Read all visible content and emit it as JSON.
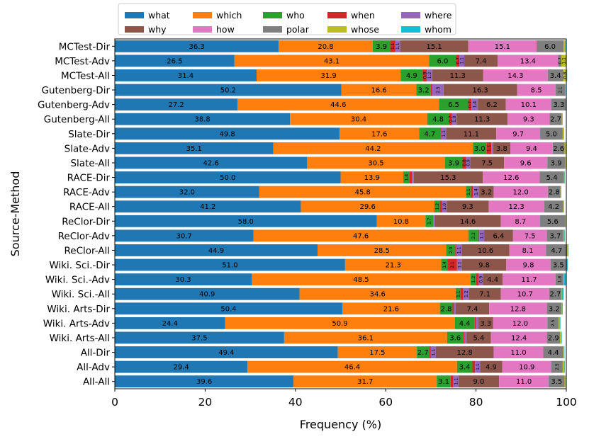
{
  "chart_data": {
    "type": "stacked-horizontal-bar",
    "xlabel": "Frequency (%)",
    "ylabel": "Source-Method",
    "xlim": [
      0,
      100
    ],
    "xticks": [
      0,
      20,
      40,
      60,
      80,
      100
    ],
    "legend_position": "top",
    "categories": [
      "MCTest-Dir",
      "MCTest-Adv",
      "MCTest-All",
      "Gutenberg-Dir",
      "Gutenberg-Adv",
      "Gutenberg-All",
      "Slate-Dir",
      "Slate-Adv",
      "Slate-All",
      "RACE-Dir",
      "RACE-Adv",
      "RACE-All",
      "ReClor-Dir",
      "ReClor-Adv",
      "ReClor-All",
      "Wiki. Sci.-Dir",
      "Wiki. Sci.-Adv",
      "Wiki. Sci.-All",
      "Wiki. Arts-Dir",
      "Wiki. Arts-Adv",
      "Wiki. Arts-All",
      "All-Dir",
      "All-Adv",
      "All-All"
    ],
    "series": [
      {
        "name": "what",
        "color": "#1f77b4",
        "values": [
          36.3,
          26.5,
          31.4,
          50.2,
          27.2,
          38.8,
          49.8,
          35.1,
          42.6,
          50.0,
          32.0,
          41.2,
          58.0,
          30.7,
          44.9,
          51.0,
          30.3,
          40.9,
          50.4,
          24.4,
          37.5,
          49.4,
          29.4,
          39.6
        ]
      },
      {
        "name": "which",
        "color": "#ff7f0e",
        "values": [
          20.8,
          43.1,
          31.9,
          16.6,
          44.6,
          30.4,
          17.6,
          44.2,
          30.5,
          13.9,
          45.8,
          29.6,
          10.8,
          47.6,
          28.5,
          21.3,
          48.5,
          34.6,
          21.6,
          50.9,
          36.1,
          17.5,
          46.4,
          31.7
        ]
      },
      {
        "name": "who",
        "color": "#2ca02c",
        "values": [
          3.9,
          6.0,
          4.9,
          3.2,
          6.5,
          4.8,
          4.7,
          3.0,
          3.9,
          1.4,
          1.1,
          1.2,
          1.7,
          2.2,
          2.0,
          1.4,
          1.2,
          1.1,
          2.8,
          4.4,
          3.6,
          2.7,
          3.4,
          3.1
        ]
      },
      {
        "name": "when",
        "color": "#d62728",
        "values": [
          1.1,
          0.7,
          0.9,
          0.3,
          0.7,
          0.7,
          0.2,
          1.1,
          0.8,
          0.5,
          0.4,
          0.5,
          0.0,
          0.2,
          0.3,
          2.1,
          0.6,
          0.6,
          0.3,
          0.3,
          0.3,
          0.4,
          0.6,
          0.6
        ]
      },
      {
        "name": "where",
        "color": "#9467bd",
        "values": [
          1.1,
          1.1,
          1.2,
          2.5,
          1.4,
          1.0,
          1.1,
          0.4,
          0.9,
          0.4,
          1.4,
          1.0,
          0.4,
          1.1,
          1.1,
          1.1,
          0.9,
          1.2,
          0.4,
          0.5,
          0.4,
          1.1,
          1.1,
          1.1
        ]
      },
      {
        "name": "why",
        "color": "#8c564b",
        "values": [
          15.1,
          7.4,
          11.3,
          16.3,
          6.2,
          11.3,
          11.1,
          3.8,
          7.5,
          15.3,
          3.2,
          9.3,
          14.6,
          6.4,
          10.6,
          9.8,
          4.4,
          7.1,
          7.4,
          3.3,
          5.4,
          12.8,
          4.9,
          9.0
        ]
      },
      {
        "name": "how",
        "color": "#e377c2",
        "values": [
          15.1,
          13.4,
          14.3,
          8.5,
          10.1,
          9.3,
          9.7,
          9.4,
          9.6,
          12.6,
          12.0,
          12.3,
          8.7,
          7.5,
          8.1,
          9.8,
          11.7,
          10.7,
          12.8,
          12.0,
          12.4,
          11.0,
          10.9,
          11.0
        ]
      },
      {
        "name": "polar",
        "color": "#7f7f7f",
        "values": [
          6.0,
          0.7,
          3.4,
          2.1,
          3.3,
          2.7,
          5.0,
          2.6,
          3.9,
          5.4,
          2.8,
          4.2,
          5.6,
          3.7,
          4.7,
          3.5,
          1.8,
          2.7,
          3.2,
          2.5,
          2.9,
          4.4,
          2.5,
          3.5
        ]
      },
      {
        "name": "whose",
        "color": "#bcbd22",
        "values": [
          0.4,
          1.1,
          0.8,
          0.1,
          0.0,
          0.1,
          0.2,
          0.4,
          0.3,
          0.1,
          0.1,
          0.1,
          0.1,
          0.2,
          0.2,
          0.0,
          0.1,
          0.1,
          0.1,
          0.2,
          0.2,
          0.2,
          0.4,
          0.3
        ]
      },
      {
        "name": "whom",
        "color": "#17becf",
        "values": [
          0.2,
          0.1,
          0.1,
          0.1,
          0.1,
          0.1,
          0.1,
          0.1,
          0.1,
          0.1,
          0.1,
          0.1,
          0.1,
          0.1,
          0.1,
          0.3,
          0.5,
          0.4,
          0.2,
          0.2,
          0.2,
          0.1,
          0.1,
          0.1
        ]
      }
    ],
    "legend_order": [
      "what",
      "why",
      "which",
      "how",
      "who",
      "polar",
      "when",
      "whose",
      "where",
      "whom"
    ]
  }
}
